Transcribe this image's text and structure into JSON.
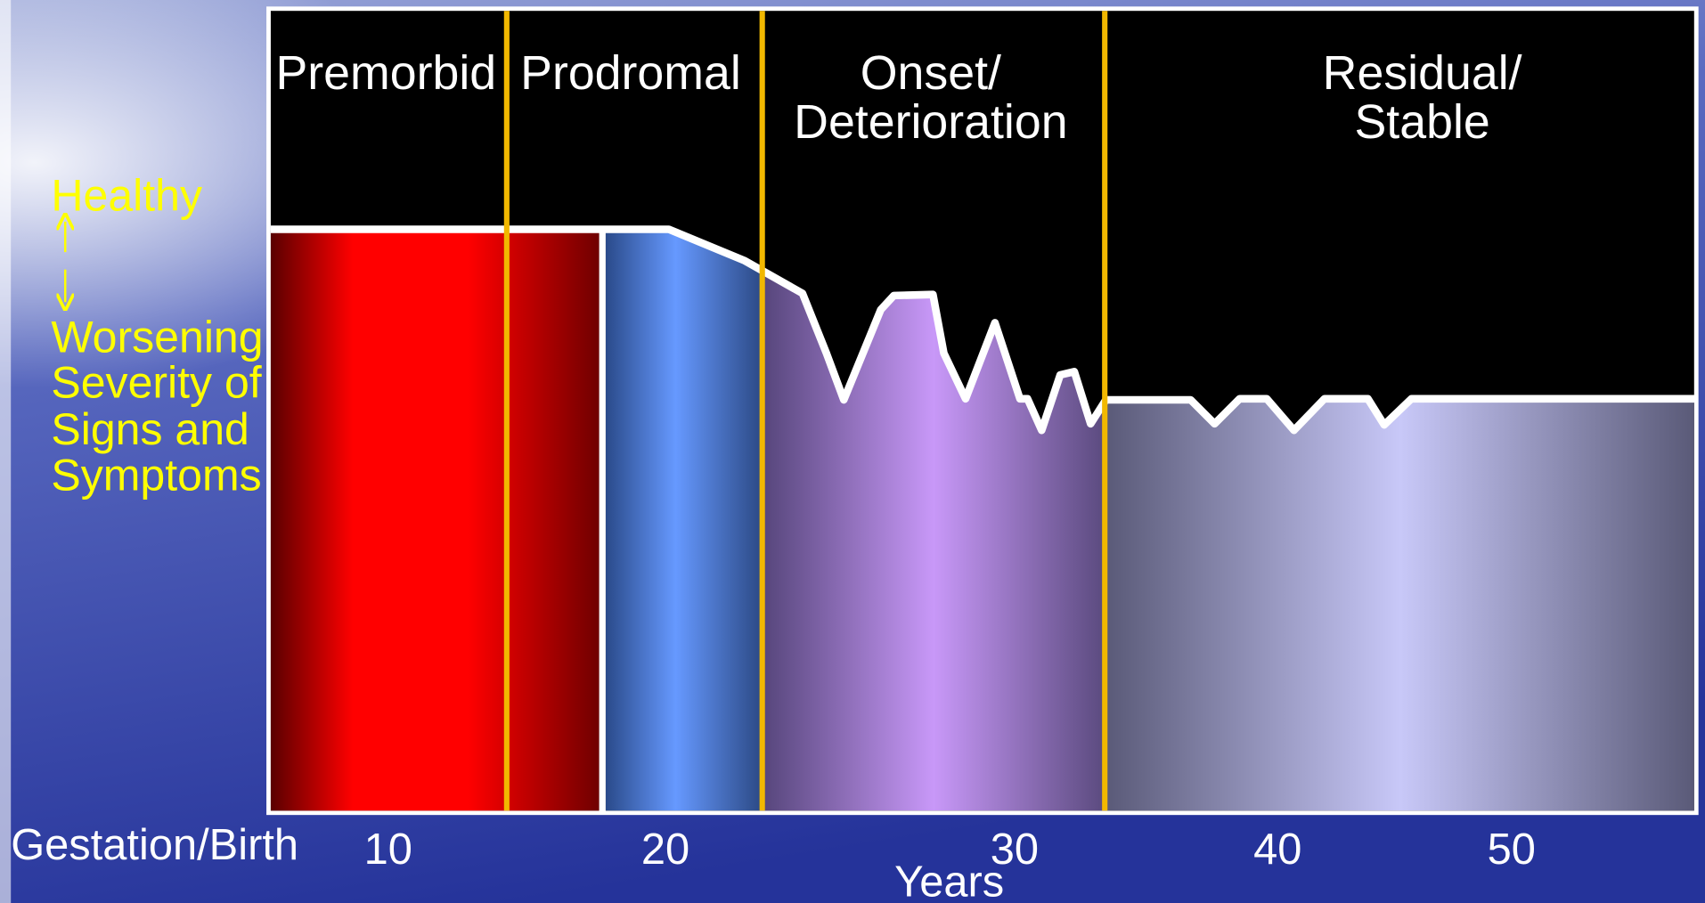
{
  "phases": [
    {
      "lines": [
        "Premorbid"
      ]
    },
    {
      "lines": [
        "Prodromal"
      ]
    },
    {
      "lines": [
        "Onset/",
        "Deterioration"
      ]
    },
    {
      "lines": [
        "Residual/",
        "Stable"
      ]
    }
  ],
  "y_axis": {
    "top": "Healthy",
    "bottom": [
      "Worsening",
      "Severity of",
      "Signs and",
      "Symptoms"
    ]
  },
  "x_axis": {
    "origin": "Gestation/Birth",
    "ticks": [
      10,
      20,
      30,
      40,
      50
    ],
    "title": "Years"
  }
}
